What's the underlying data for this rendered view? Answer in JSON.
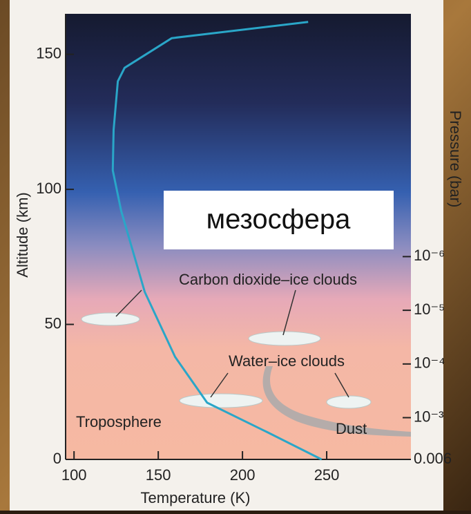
{
  "chart_data": {
    "type": "line",
    "x": [
      247,
      215,
      179,
      160,
      142,
      128,
      123,
      123.5,
      126,
      130,
      158,
      239
    ],
    "values": [
      0,
      10,
      21,
      38,
      62,
      92,
      107,
      122,
      140,
      145,
      156,
      162
    ],
    "color": "#2aa6c8",
    "xlabel": "Temperature (K)",
    "ylabel": "Altitude (km)",
    "y2label": "Pressure (bar)",
    "xlim": [
      95,
      300
    ],
    "ylim": [
      0,
      165
    ],
    "xticks": [
      100,
      150,
      200,
      250
    ],
    "yticks": [
      0,
      50,
      100,
      150
    ],
    "y2scale": "log",
    "y2lim": [
      0.006,
      3e-11
    ],
    "y2ticks": [
      {
        "value": 0.006,
        "label": "0.006"
      },
      {
        "value": 0.001,
        "label": "10⁻³"
      },
      {
        "value": 0.0001,
        "label": "10⁻⁴"
      },
      {
        "value": 1e-05,
        "label": "10⁻⁵"
      },
      {
        "value": 1e-06,
        "label": "10⁻⁶"
      }
    ],
    "annotations": [
      "мезосфера",
      "Carbon dioxide–ice clouds",
      "Water–ice clouds",
      "Troposphere",
      "Dust"
    ]
  }
}
